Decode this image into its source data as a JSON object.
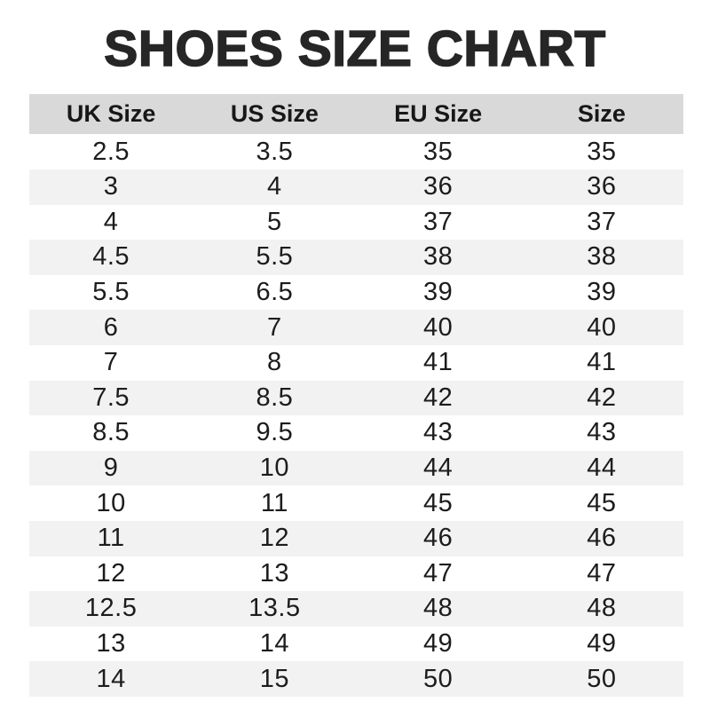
{
  "page": {
    "title": "SHOES SIZE CHART"
  },
  "colors": {
    "title_text": "#262626",
    "header_bg": "#d9d9d9",
    "stripe_bg": "#f2f2f2",
    "body_text": "#1c1c1c"
  },
  "chart_data": {
    "type": "table",
    "title": "SHOES SIZE CHART",
    "columns": [
      "UK Size",
      "US Size",
      "EU Size",
      "Size"
    ],
    "rows": [
      [
        "2.5",
        "3.5",
        "35",
        "35"
      ],
      [
        "3",
        "4",
        "36",
        "36"
      ],
      [
        "4",
        "5",
        "37",
        "37"
      ],
      [
        "4.5",
        "5.5",
        "38",
        "38"
      ],
      [
        "5.5",
        "6.5",
        "39",
        "39"
      ],
      [
        "6",
        "7",
        "40",
        "40"
      ],
      [
        "7",
        "8",
        "41",
        "41"
      ],
      [
        "7.5",
        "8.5",
        "42",
        "42"
      ],
      [
        "8.5",
        "9.5",
        "43",
        "43"
      ],
      [
        "9",
        "10",
        "44",
        "44"
      ],
      [
        "10",
        "11",
        "45",
        "45"
      ],
      [
        "11",
        "12",
        "46",
        "46"
      ],
      [
        "12",
        "13",
        "47",
        "47"
      ],
      [
        "12.5",
        "13.5",
        "48",
        "48"
      ],
      [
        "13",
        "14",
        "49",
        "49"
      ],
      [
        "14",
        "15",
        "50",
        "50"
      ]
    ],
    "layout": {
      "stripe_pattern": "even rows shaded",
      "alignment": "center",
      "grid": false
    }
  }
}
